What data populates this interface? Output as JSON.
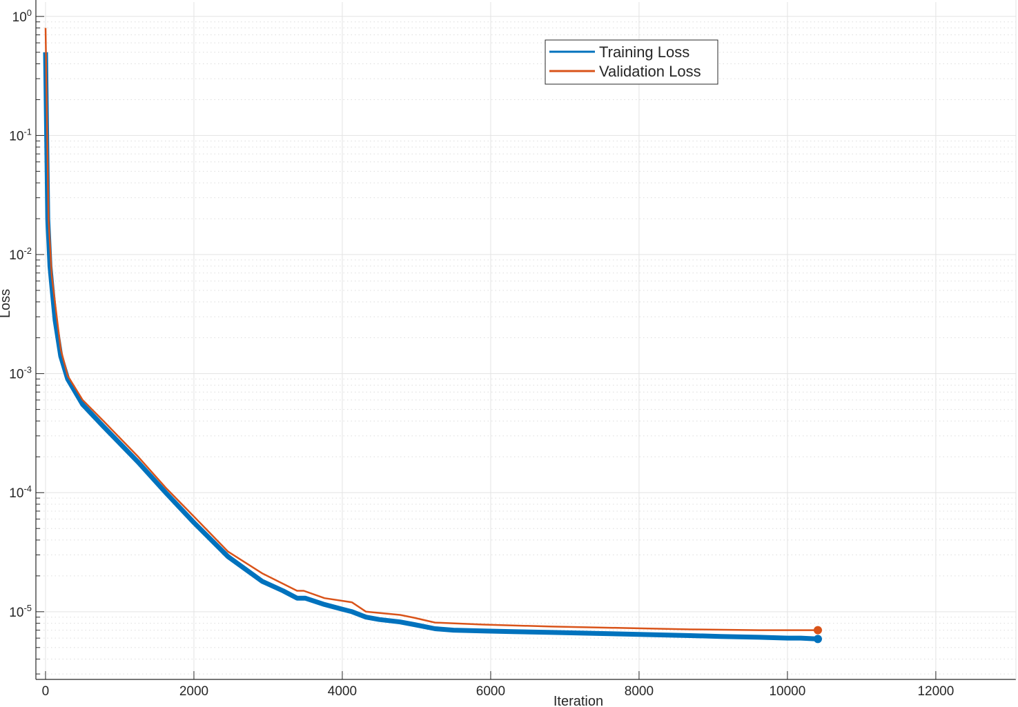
{
  "chart_data": {
    "type": "line",
    "title": "",
    "xlabel": "Iteration",
    "ylabel": "Loss",
    "xlim": [
      -130,
      13080
    ],
    "ylim": [
      2.7e-06,
      1.32
    ],
    "yscale": "log",
    "grid": "on",
    "minor_grid": "on",
    "legend_placement": "top-center",
    "xticks": [
      0,
      2000,
      4000,
      6000,
      8000,
      10000,
      12000
    ],
    "xtick_labels": [
      "0",
      "2000",
      "4000",
      "6000",
      "8000",
      "10000",
      "12000"
    ],
    "yticks": [
      1,
      0.1,
      0.01,
      0.001,
      0.0001,
      1e-05
    ],
    "ytick_labels": [
      {
        "base": "10",
        "exp": "0"
      },
      {
        "base": "10",
        "exp": "-1"
      },
      {
        "base": "10",
        "exp": "-2"
      },
      {
        "base": "10",
        "exp": "-3"
      },
      {
        "base": "10",
        "exp": "-4"
      },
      {
        "base": "10",
        "exp": "-5"
      }
    ],
    "series": [
      {
        "name": "Training Loss",
        "color": "#0072BD",
        "x": [
          0,
          30,
          60,
          84,
          130,
          205,
          298,
          500,
          780,
          1000,
          1250,
          1620,
          2000,
          2460,
          2920,
          3200,
          3390,
          3500,
          3760,
          4000,
          4130,
          4320,
          4500,
          4780,
          4970,
          5250,
          5500,
          5900,
          6300,
          6830,
          7300,
          7760,
          8200,
          8690,
          9100,
          9620,
          10000,
          10180,
          10410
        ],
        "y": [
          0.5,
          0.02,
          0.008,
          0.0055,
          0.0028,
          0.0014,
          0.0009,
          0.00055,
          0.00036,
          0.00026,
          0.00018,
          0.0001,
          5.6e-05,
          2.9e-05,
          1.8e-05,
          1.5e-05,
          1.3e-05,
          1.3e-05,
          1.15e-05,
          1.05e-05,
          1e-05,
          9e-06,
          8.6e-06,
          8.2e-06,
          7.8e-06,
          7.2e-06,
          7e-06,
          6.9e-06,
          6.8e-06,
          6.7e-06,
          6.6e-06,
          6.5e-06,
          6.4e-06,
          6.3e-06,
          6.2e-06,
          6.1e-06,
          6e-06,
          6e-06,
          5.9e-06
        ]
      },
      {
        "name": "Validation Loss",
        "color": "#D95319",
        "x": [
          0,
          40,
          84,
          205,
          298,
          500,
          780,
          1250,
          1620,
          2000,
          2460,
          2920,
          3390,
          3480,
          3760,
          4130,
          4320,
          4780,
          4970,
          5250,
          5900,
          6830,
          7760,
          8690,
          9620,
          10180,
          10410
        ],
        "y": [
          0.8,
          0.02,
          0.0066,
          0.0016,
          0.00096,
          0.0006,
          0.0004,
          0.0002,
          0.00011,
          6.3e-05,
          3.2e-05,
          2.1e-05,
          1.5e-05,
          1.5e-05,
          1.3e-05,
          1.2e-05,
          1e-05,
          9.4e-06,
          8.9e-06,
          8.1e-06,
          7.8e-06,
          7.5e-06,
          7.3e-06,
          7.1e-06,
          7e-06,
          7e-06,
          7e-06
        ]
      }
    ]
  },
  "legend": {
    "items": [
      "Training Loss",
      "Validation Loss"
    ]
  }
}
